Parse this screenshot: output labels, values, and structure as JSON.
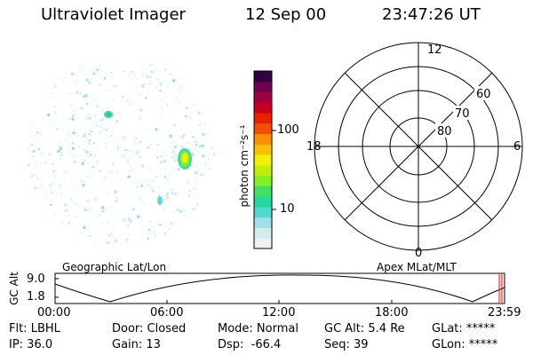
{
  "header": {
    "instrument": "Ultraviolet Imager",
    "date": "12 Sep 00",
    "time": "23:47:26 UT"
  },
  "colorbar": {
    "label": "photon cm⁻²s⁻¹",
    "ticks": [
      "100",
      "10"
    ]
  },
  "polar_grid": {
    "mlt_labels": [
      "12",
      "18",
      "6",
      "0"
    ],
    "mlat_labels": [
      "60",
      "70",
      "80"
    ]
  },
  "frames": {
    "left_label": "Geographic Lat/Lon",
    "right_label": "Apex MLat/MLT"
  },
  "timeline": {
    "ylabel": "GC Alt",
    "ytick_top": "9.0",
    "ytick_bottom": "1.8",
    "times": [
      "00:00",
      "06:00",
      "12:00",
      "18:00",
      "23:59"
    ]
  },
  "status": {
    "flt": "Flt: LBHL",
    "door": "Door: Closed",
    "mode": "Mode: Normal",
    "gc_alt": "GC Alt: 5.4 Re",
    "glat": "GLat: *****",
    "ip": "IP: 36.0",
    "gain": "Gain: 13",
    "dsp": "Dsp:  -66.4",
    "seq": "Seq: 39",
    "glon": "GLon: *****"
  },
  "colors": {
    "colorbar": [
      "#f0f0f0",
      "#d0eef0",
      "#a0e0e8",
      "#50d8d0",
      "#20d8a0",
      "#40e060",
      "#80f020",
      "#c0f000",
      "#f0f000",
      "#f8c000",
      "#f89000",
      "#f05000",
      "#e82000",
      "#c80020",
      "#a00040",
      "#700050",
      "#300040"
    ],
    "marker": "#ff0000"
  }
}
